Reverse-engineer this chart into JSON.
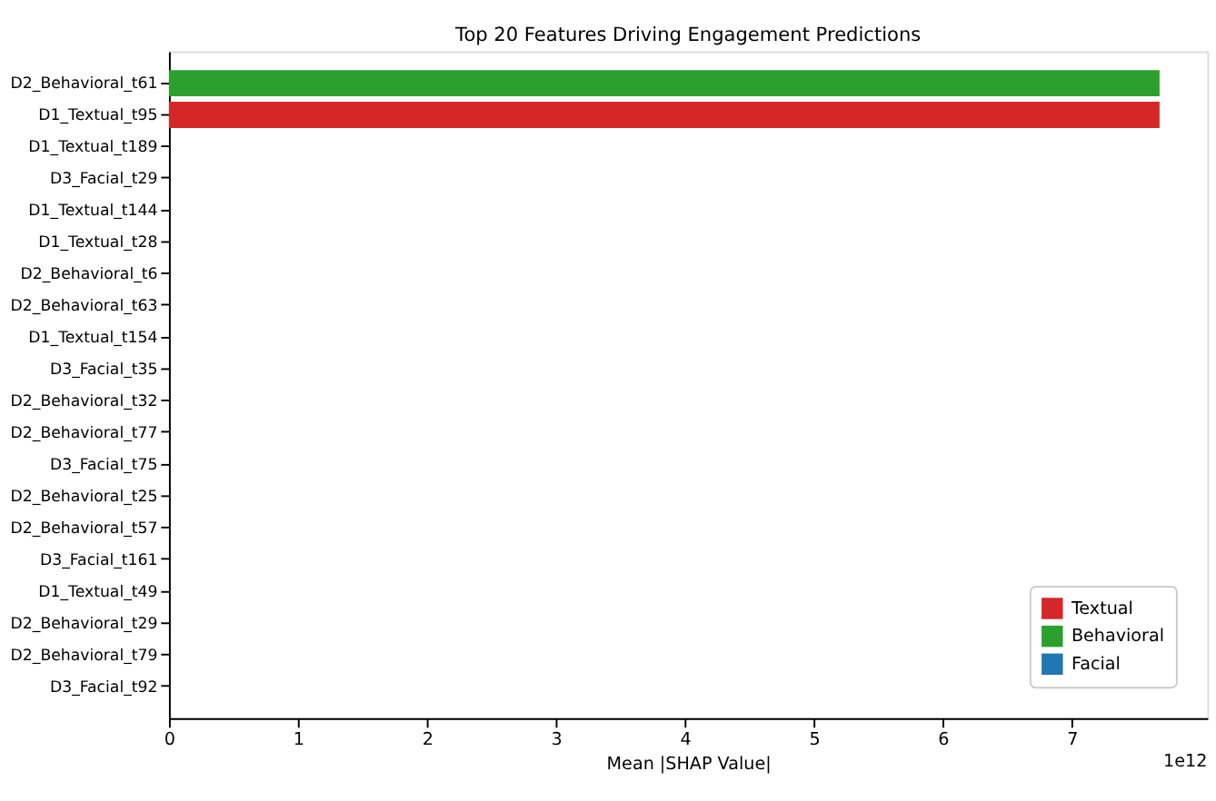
{
  "chart_data": {
    "type": "bar",
    "orientation": "horizontal",
    "title": "Top 20 Features Driving Engagement Predictions",
    "xlabel": "Mean |SHAP Value|",
    "categories": [
      "D2_Behavioral_t61",
      "D1_Textual_t95",
      "D1_Textual_t189",
      "D3_Facial_t29",
      "D1_Textual_t144",
      "D1_Textual_t28",
      "D2_Behavioral_t6",
      "D2_Behavioral_t63",
      "D1_Textual_t154",
      "D3_Facial_t35",
      "D2_Behavioral_t32",
      "D2_Behavioral_t77",
      "D3_Facial_t75",
      "D2_Behavioral_t25",
      "D2_Behavioral_t57",
      "D3_Facial_t161",
      "D1_Textual_t49",
      "D2_Behavioral_t29",
      "D2_Behavioral_t79",
      "D3_Facial_t92"
    ],
    "series": [
      {
        "name": "Textual",
        "color": "#d62728",
        "values": [
          null,
          7.68,
          0,
          null,
          0,
          0,
          null,
          null,
          0,
          null,
          null,
          null,
          null,
          null,
          null,
          null,
          0,
          null,
          null,
          null
        ]
      },
      {
        "name": "Behavioral",
        "color": "#2ca02c",
        "values": [
          7.68,
          null,
          null,
          null,
          null,
          null,
          0,
          0,
          null,
          null,
          0,
          0,
          null,
          0,
          0,
          null,
          null,
          0,
          0,
          null
        ]
      },
      {
        "name": "Facial",
        "color": "#1f77b4",
        "values": [
          null,
          null,
          null,
          0,
          null,
          null,
          null,
          null,
          null,
          0,
          null,
          null,
          0,
          null,
          null,
          0,
          null,
          null,
          null,
          0
        ]
      }
    ],
    "xlim": [
      0,
      8.05
    ],
    "xticks": [
      0,
      1,
      2,
      3,
      4,
      5,
      6,
      7
    ],
    "annotations": [
      "1e12"
    ],
    "grid": false,
    "legend": "bottom right"
  }
}
